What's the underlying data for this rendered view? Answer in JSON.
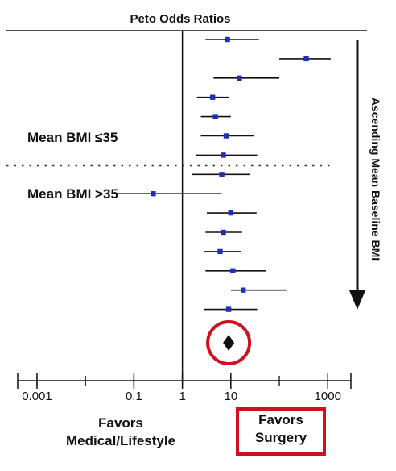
{
  "chart_data": {
    "type": "forest",
    "title": "Peto Odds Ratios",
    "xscale": "log",
    "xlim": [
      0.0004,
      3000
    ],
    "reference_line": 1,
    "ticks": [
      {
        "value": 0.001,
        "label": "0.001"
      },
      {
        "value": 0.1,
        "label": "0.1"
      },
      {
        "value": 1,
        "label": "1"
      },
      {
        "value": 10,
        "label": "10"
      },
      {
        "value": 1000,
        "label": "1000"
      }
    ],
    "studies": [
      {
        "or": 8.5,
        "lo": 3.0,
        "hi": 38
      },
      {
        "or": 360,
        "lo": 100,
        "hi": 1150
      },
      {
        "or": 15,
        "lo": 4.4,
        "hi": 100
      },
      {
        "or": 4.2,
        "lo": 2.0,
        "hi": 9.0
      },
      {
        "or": 4.8,
        "lo": 2.4,
        "hi": 10
      },
      {
        "or": 8.0,
        "lo": 2.4,
        "hi": 30
      },
      {
        "or": 7.0,
        "lo": 1.9,
        "hi": 35
      },
      {
        "or": 6.5,
        "lo": 1.6,
        "hi": 25
      },
      {
        "or": 0.25,
        "lo": 0.04,
        "hi": 6.5
      },
      {
        "or": 10,
        "lo": 3.2,
        "hi": 34
      },
      {
        "or": 7.0,
        "lo": 3.0,
        "hi": 17
      },
      {
        "or": 6.0,
        "lo": 2.8,
        "hi": 16
      },
      {
        "or": 11,
        "lo": 3.0,
        "hi": 53
      },
      {
        "or": 18,
        "lo": 10,
        "hi": 140
      },
      {
        "or": 9.0,
        "lo": 2.8,
        "hi": 35
      }
    ],
    "pooled": {
      "or": 9.0
    },
    "group_labels": {
      "upper": "Mean BMI ≤35",
      "lower": "Mean BMI >35"
    },
    "side_label": "Ascending Mean Baseline BMI",
    "favors_left": [
      "Favors",
      "Medical/Lifestyle"
    ],
    "favors_right": [
      "Favors",
      "Surgery"
    ],
    "colors": {
      "point": "#1f2fb8",
      "highlight": "#d10f1f",
      "ink": "#111111"
    }
  }
}
